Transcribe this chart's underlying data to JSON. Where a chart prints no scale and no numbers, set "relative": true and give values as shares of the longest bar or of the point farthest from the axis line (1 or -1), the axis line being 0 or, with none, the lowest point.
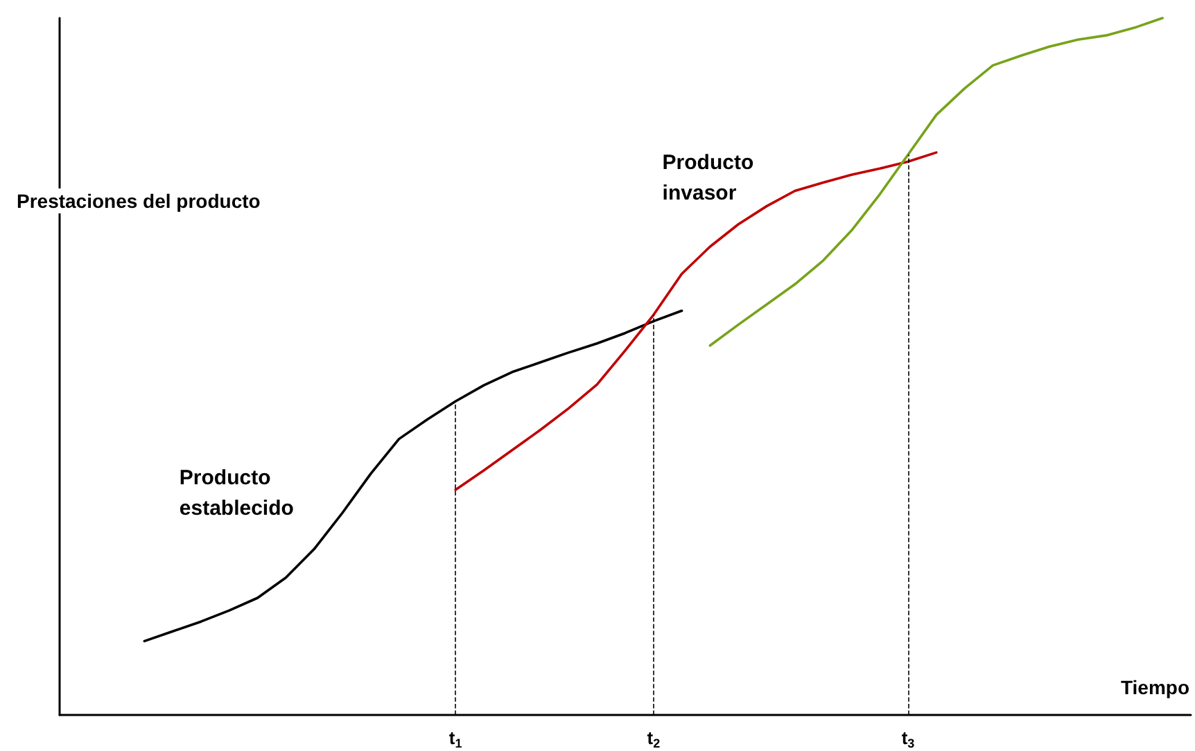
{
  "chart_data": {
    "type": "line",
    "relative": true,
    "xlabel": "Tiempo",
    "ylabel": "Prestaciones del producto",
    "categories": [
      null,
      null,
      null,
      null,
      null,
      null,
      null,
      null,
      null,
      null,
      null,
      null,
      null,
      null,
      "t$_{1}$",
      null,
      null,
      null,
      null,
      null,
      null,
      "t$_{2}$",
      null,
      null,
      null,
      null,
      null,
      null,
      null,
      null,
      "t$_{3}$",
      null,
      null,
      null,
      null,
      null,
      null,
      null,
      null,
      null,
      null
    ],
    "tick_labels": "x",
    "marker": "none",
    "line_style": "solid",
    "series": [
      {
        "name": "Producto establecido",
        "color": "#000000",
        "values": [
          null,
          null,
          null,
          0.106,
          0.12,
          0.134,
          0.15,
          0.168,
          0.197,
          0.238,
          0.29,
          0.346,
          0.396,
          0.424,
          0.45,
          0.473,
          0.492,
          0.506,
          0.52,
          0.533,
          0.548,
          0.565,
          0.58,
          null,
          null,
          null,
          null,
          null,
          null,
          null,
          null,
          null,
          null,
          null,
          null,
          null,
          null,
          null,
          null,
          null,
          null
        ]
      },
      {
        "name": "Producto invasor",
        "color": "#c00000",
        "values": [
          null,
          null,
          null,
          null,
          null,
          null,
          null,
          null,
          null,
          null,
          null,
          null,
          null,
          null,
          0.323,
          0.351,
          0.38,
          0.409,
          0.44,
          0.474,
          0.523,
          0.574,
          0.633,
          0.672,
          0.704,
          0.73,
          0.752,
          0.764,
          0.775,
          0.784,
          0.794,
          0.807,
          null,
          null,
          null,
          null,
          null,
          null,
          null,
          null,
          null
        ]
      },
      {
        "color": "#77a31a",
        "values": [
          null,
          null,
          null,
          null,
          null,
          null,
          null,
          null,
          null,
          null,
          null,
          null,
          null,
          null,
          null,
          null,
          null,
          null,
          null,
          null,
          null,
          null,
          null,
          0.53,
          0.56,
          0.589,
          0.618,
          0.652,
          0.695,
          0.747,
          0.804,
          0.861,
          0.899,
          0.932,
          0.946,
          0.959,
          0.969,
          0.975,
          0.986,
          1,
          null
        ]
      }
    ],
    "ref_lines": [
      {
        "axis": "x",
        "value": "t$_{1}$",
        "line_style": "dashed",
        "color": "#000000"
      },
      {
        "axis": "x",
        "value": "t$_{2}$",
        "line_style": "dashed",
        "color": "#000000"
      },
      {
        "axis": "x",
        "value": "t$_{3}$",
        "line_style": "dashed",
        "color": "#000000"
      }
    ]
  }
}
